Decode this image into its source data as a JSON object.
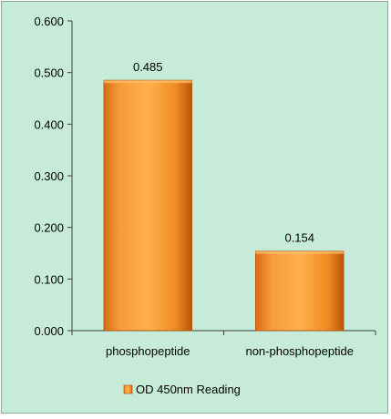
{
  "chart_data": {
    "type": "bar",
    "categories": [
      "phosphopeptide",
      "non-phosphopeptide"
    ],
    "series": [
      {
        "name": "OD 450nm Reading",
        "values": [
          0.485,
          0.154
        ],
        "data_labels": [
          "0.485",
          "0.154"
        ]
      }
    ],
    "yticks": [
      "0.000",
      "0.100",
      "0.200",
      "0.300",
      "0.400",
      "0.500",
      "0.600"
    ],
    "ylim": [
      0,
      0.6
    ],
    "title": "",
    "xlabel": "",
    "ylabel": "",
    "legend_position": "bottom",
    "grid": false,
    "colors": {
      "background": "#c6ecd9",
      "bar_light": "#ffb347",
      "bar_mid": "#f28a1e",
      "bar_dark": "#c25e0c",
      "axis": "#404040"
    }
  }
}
